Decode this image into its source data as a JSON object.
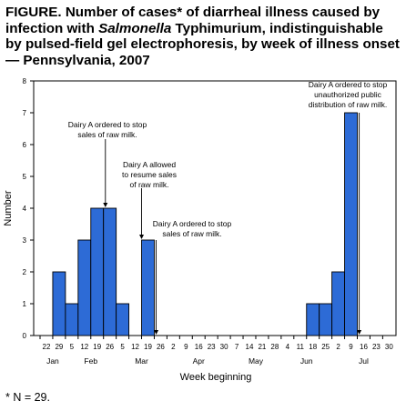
{
  "title": {
    "part1": "FIGURE. Number of cases* of diarrheal illness caused by infection with ",
    "italic": "Salmonella",
    "part2": " Typhimurium, indistinguishable by pulsed-field gel electrophoresis, by week of illness onset — Pennsylvania, 2007"
  },
  "footnote": "* N = 29.",
  "chart_data": {
    "type": "bar",
    "ylabel": "Number",
    "xlabel": "Week beginning",
    "ylim": [
      0,
      8
    ],
    "yticks": [
      "0",
      "1",
      "2",
      "3",
      "4",
      "5",
      "6",
      "7",
      "8"
    ],
    "categories": [
      "22",
      "29",
      "5",
      "12",
      "19",
      "26",
      "5",
      "12",
      "19",
      "26",
      "2",
      "9",
      "16",
      "23",
      "30",
      "7",
      "14",
      "21",
      "28",
      "4",
      "11",
      "18",
      "25",
      "2",
      "9",
      "16",
      "23",
      "30"
    ],
    "values": [
      0,
      2,
      1,
      3,
      4,
      4,
      1,
      0,
      3,
      0,
      0,
      0,
      0,
      0,
      0,
      0,
      0,
      0,
      0,
      0,
      0,
      1,
      1,
      2,
      7,
      0,
      0,
      0
    ],
    "months": [
      {
        "label": "Jan",
        "start": 0,
        "end": 1
      },
      {
        "label": "Feb",
        "start": 2,
        "end": 5
      },
      {
        "label": "Mar",
        "start": 6,
        "end": 9
      },
      {
        "label": "Apr",
        "start": 10,
        "end": 14
      },
      {
        "label": "May",
        "start": 15,
        "end": 18
      },
      {
        "label": "Jun",
        "start": 19,
        "end": 22
      },
      {
        "label": "Jul",
        "start": 23,
        "end": 27
      }
    ],
    "annotations": [
      {
        "lines": [
          "Dairy A ordered to stop",
          "sales of raw milk."
        ],
        "week_index": 5,
        "week_offset": 0.15
      },
      {
        "lines": [
          "Dairy A allowed",
          "to resume sales",
          "of raw milk."
        ],
        "week_index": 8,
        "week_offset": 0.0
      },
      {
        "lines": [
          "Dairy A ordered to stop",
          "sales of raw milk."
        ],
        "week_index": 9,
        "week_offset": 0.15
      },
      {
        "lines": [
          "Dairy A ordered to stop",
          "unauthorized public",
          "distribution of raw milk."
        ],
        "week_index": 25,
        "week_offset": 0.15
      }
    ],
    "bar_color": "#2d6bd6",
    "grid": false
  }
}
